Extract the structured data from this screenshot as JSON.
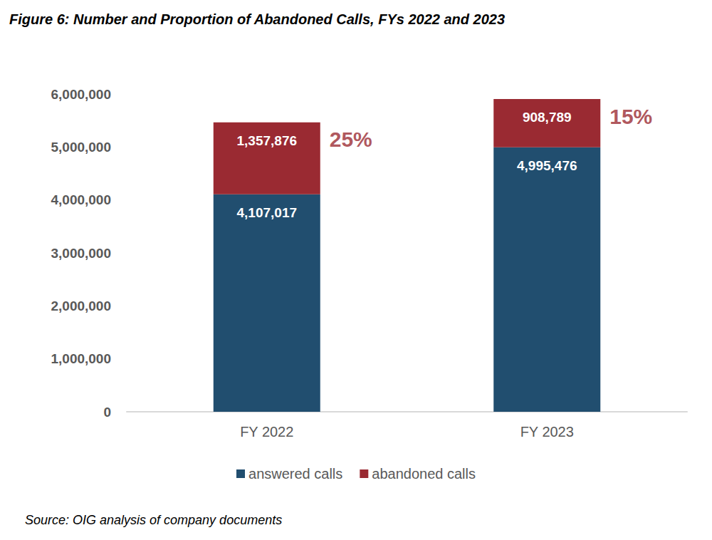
{
  "chart_data": {
    "type": "bar",
    "title": "Figure 6: Number and Proportion of Abandoned Calls, FYs 2022 and 2023",
    "source": "Source: OIG analysis of company documents",
    "categories": [
      "FY 2022",
      "FY 2023"
    ],
    "series": [
      {
        "name": "answered calls",
        "color": "#214e6f",
        "values": [
          4107017,
          4995476
        ],
        "value_labels": [
          "4,107,017",
          "4,995,476"
        ]
      },
      {
        "name": "abandoned calls",
        "color": "#9a2a32",
        "values": [
          1357876,
          908789
        ],
        "value_labels": [
          "1,357,876",
          "908,789"
        ]
      }
    ],
    "annotations": [
      {
        "category": "FY 2022",
        "text": "25%"
      },
      {
        "category": "FY 2023",
        "text": "15%"
      }
    ],
    "ylim": [
      0,
      6000000
    ],
    "yticks": [
      0,
      {
        "value": 1000000,
        "label": "1,000,000"
      },
      {
        "value": 2000000,
        "label": "2,000,000"
      },
      {
        "value": 3000000,
        "label": "3,000,000"
      },
      {
        "value": 4000000,
        "label": "4,000,000"
      },
      {
        "value": 5000000,
        "label": "5,000,000"
      },
      {
        "value": 6000000,
        "label": "6,000,000"
      }
    ],
    "stacked": true,
    "data_labels": true,
    "grid": false,
    "legend": "bottom"
  }
}
